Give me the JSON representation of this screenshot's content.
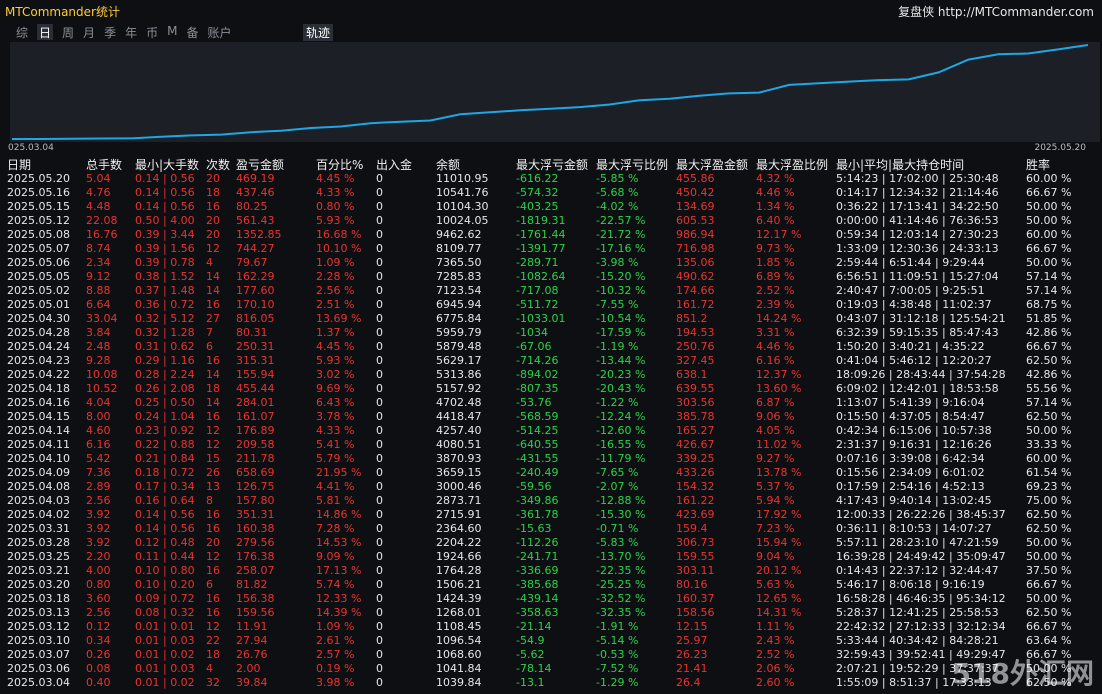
{
  "header": {
    "title": "MTCommander统计",
    "site": "复盘侠 http://MTCommander.com"
  },
  "tabs": [
    "综",
    "日",
    "周",
    "月",
    "季",
    "年",
    "币",
    "M",
    "备",
    "账户"
  ],
  "active_tab": "轨迹",
  "curve": {
    "start_label": "025.03.04",
    "end_label": "2025.05.20"
  },
  "table": {
    "columns": [
      "日期",
      "总手数",
      "最小|大手数",
      "次数",
      "盈亏金额",
      "百分比%",
      "出入金",
      "余额",
      "最大浮亏金额",
      "最大浮亏比例",
      "最大浮盈金额",
      "最大浮盈比例",
      "最小|平均|最大持仓时间",
      "胜率"
    ],
    "rows": [
      [
        "2025.05.20",
        "5.04",
        "0.14 | 0.56",
        "20",
        "469.19",
        "4.45 %",
        "0",
        "11010.95",
        "-616.22",
        "-5.85 %",
        "455.86",
        "4.32 %",
        "5:14:23 | 17:02:00 | 25:30:48",
        "60.00 %"
      ],
      [
        "2025.05.16",
        "4.76",
        "0.14 | 0.56",
        "18",
        "437.46",
        "4.33 %",
        "0",
        "10541.76",
        "-574.32",
        "-5.68 %",
        "450.42",
        "4.46 %",
        "0:14:17 | 12:34:32 | 21:14:46",
        "66.67 %"
      ],
      [
        "2025.05.15",
        "4.48",
        "0.14 | 0.56",
        "16",
        "80.25",
        "0.80 %",
        "0",
        "10104.30",
        "-403.25",
        "-4.02 %",
        "134.69",
        "1.34 %",
        "0:36:22 | 17:13:41 | 34:22:50",
        "50.00 %"
      ],
      [
        "2025.05.12",
        "22.08",
        "0.50 | 4.00",
        "20",
        "561.43",
        "5.93 %",
        "0",
        "10024.05",
        "-1819.31",
        "-22.57 %",
        "605.53",
        "6.40 %",
        "0:00:00 | 41:14:46 | 76:36:53",
        "50.00 %"
      ],
      [
        "2025.05.08",
        "16.76",
        "0.39 | 3.44",
        "20",
        "1352.85",
        "16.68 %",
        "0",
        "9462.62",
        "-1761.44",
        "-21.72 %",
        "986.94",
        "12.17 %",
        "0:59:34 | 12:03:14 | 27:30:23",
        "60.00 %"
      ],
      [
        "2025.05.07",
        "8.74",
        "0.39 | 1.56",
        "12",
        "744.27",
        "10.10 %",
        "0",
        "8109.77",
        "-1391.77",
        "-17.16 %",
        "716.98",
        "9.73 %",
        "1:33:09 | 12:30:36 | 24:33:13",
        "66.67 %"
      ],
      [
        "2025.05.06",
        "2.34",
        "0.39 | 0.78",
        "4",
        "79.67",
        "1.09 %",
        "0",
        "7365.50",
        "-289.71",
        "-3.98 %",
        "135.06",
        "1.85 %",
        "2:59:44 | 6:51:44 | 9:29:44",
        "50.00 %"
      ],
      [
        "2025.05.05",
        "9.12",
        "0.38 | 1.52",
        "14",
        "162.29",
        "2.28 %",
        "0",
        "7285.83",
        "-1082.64",
        "-15.20 %",
        "490.62",
        "6.89 %",
        "6:56:51 | 11:09:51 | 15:27:04",
        "57.14 %"
      ],
      [
        "2025.05.02",
        "8.88",
        "0.37 | 1.48",
        "14",
        "177.60",
        "2.56 %",
        "0",
        "7123.54",
        "-717.08",
        "-10.32 %",
        "174.66",
        "2.52 %",
        "2:40:47 | 7:00:05 | 9:25:51",
        "57.14 %"
      ],
      [
        "2025.05.01",
        "6.64",
        "0.36 | 0.72",
        "16",
        "170.10",
        "2.51 %",
        "0",
        "6945.94",
        "-511.72",
        "-7.55 %",
        "161.72",
        "2.39 %",
        "0:19:03 | 4:38:48 | 11:02:37",
        "68.75 %"
      ],
      [
        "2025.04.30",
        "33.04",
        "0.32 | 5.12",
        "27",
        "816.05",
        "13.69 %",
        "0",
        "6775.84",
        "-1033.01",
        "-10.54 %",
        "851.2",
        "14.24 %",
        "0:43:07 | 31:12:18 | 125:54:21",
        "51.85 %"
      ],
      [
        "2025.04.28",
        "3.84",
        "0.32 | 1.28",
        "7",
        "80.31",
        "1.37 %",
        "0",
        "5959.79",
        "-1034",
        "-17.59 %",
        "194.53",
        "3.31 %",
        "6:32:39 | 59:15:35 | 85:47:43",
        "42.86 %"
      ],
      [
        "2025.04.24",
        "2.48",
        "0.31 | 0.62",
        "6",
        "250.31",
        "4.45 %",
        "0",
        "5879.48",
        "-67.06",
        "-1.19 %",
        "250.76",
        "4.46 %",
        "1:50:20 | 3:40:21 | 4:35:22",
        "66.67 %"
      ],
      [
        "2025.04.23",
        "9.28",
        "0.29 | 1.16",
        "16",
        "315.31",
        "5.93 %",
        "0",
        "5629.17",
        "-714.26",
        "-13.44 %",
        "327.45",
        "6.16 %",
        "0:41:04 | 5:46:12 | 12:20:27",
        "62.50 %"
      ],
      [
        "2025.04.22",
        "10.08",
        "0.28 | 2.24",
        "14",
        "155.94",
        "3.02 %",
        "0",
        "5313.86",
        "-894.02",
        "-20.23 %",
        "638.1",
        "12.37 %",
        "18:09:26 | 28:43:44 | 37:54:28",
        "42.86 %"
      ],
      [
        "2025.04.18",
        "10.52",
        "0.26 | 2.08",
        "18",
        "455.44",
        "9.69 %",
        "0",
        "5157.92",
        "-807.35",
        "-20.43 %",
        "639.55",
        "13.60 %",
        "6:09:02 | 12:42:01 | 18:53:58",
        "55.56 %"
      ],
      [
        "2025.04.16",
        "4.04",
        "0.25 | 0.50",
        "14",
        "284.01",
        "6.43 %",
        "0",
        "4702.48",
        "-53.76",
        "-1.22 %",
        "303.56",
        "6.87 %",
        "1:13:07 | 5:41:39 | 9:16:04",
        "57.14 %"
      ],
      [
        "2025.04.15",
        "8.00",
        "0.24 | 1.04",
        "16",
        "161.07",
        "3.78 %",
        "0",
        "4418.47",
        "-568.59",
        "-12.24 %",
        "385.78",
        "9.06 %",
        "0:15:50 | 4:37:05 | 8:54:47",
        "62.50 %"
      ],
      [
        "2025.04.14",
        "4.60",
        "0.23 | 0.92",
        "12",
        "176.89",
        "4.33 %",
        "0",
        "4257.40",
        "-514.25",
        "-12.60 %",
        "165.27",
        "4.05 %",
        "0:42:34 | 6:15:06 | 10:57:38",
        "50.00 %"
      ],
      [
        "2025.04.11",
        "6.16",
        "0.22 | 0.88",
        "12",
        "209.58",
        "5.41 %",
        "0",
        "4080.51",
        "-640.55",
        "-16.55 %",
        "426.67",
        "11.02 %",
        "2:31:37 | 9:16:31 | 12:16:26",
        "33.33 %"
      ],
      [
        "2025.04.10",
        "5.42",
        "0.21 | 0.84",
        "15",
        "211.78",
        "5.79 %",
        "0",
        "3870.93",
        "-431.55",
        "-11.79 %",
        "339.25",
        "9.27 %",
        "0:07:16 | 3:39:08 | 6:42:34",
        "60.00 %"
      ],
      [
        "2025.04.09",
        "7.36",
        "0.18 | 0.72",
        "26",
        "658.69",
        "21.95 %",
        "0",
        "3659.15",
        "-240.49",
        "-7.65 %",
        "433.26",
        "13.78 %",
        "0:15:56 | 2:34:09 | 6:01:02",
        "61.54 %"
      ],
      [
        "2025.04.08",
        "2.89",
        "0.17 | 0.34",
        "13",
        "126.75",
        "4.41 %",
        "0",
        "3000.46",
        "-59.56",
        "-2.07 %",
        "154.32",
        "5.37 %",
        "0:17:59 | 2:54:16 | 4:52:13",
        "69.23 %"
      ],
      [
        "2025.04.03",
        "2.56",
        "0.16 | 0.64",
        "8",
        "157.80",
        "5.81 %",
        "0",
        "2873.71",
        "-349.86",
        "-12.88 %",
        "161.22",
        "5.94 %",
        "4:17:43 | 9:40:14 | 13:02:45",
        "75.00 %"
      ],
      [
        "2025.04.02",
        "3.92",
        "0.14 | 0.56",
        "16",
        "351.31",
        "14.86 %",
        "0",
        "2715.91",
        "-361.78",
        "-15.30 %",
        "423.69",
        "17.92 %",
        "12:00:33 | 26:22:26 | 38:45:37",
        "62.50 %"
      ],
      [
        "2025.03.31",
        "3.92",
        "0.14 | 0.56",
        "16",
        "160.38",
        "7.28 %",
        "0",
        "2364.60",
        "-15.63",
        "-0.71 %",
        "159.4",
        "7.23 %",
        "0:36:11 | 8:10:53 | 14:07:27",
        "62.50 %"
      ],
      [
        "2025.03.28",
        "3.92",
        "0.12 | 0.48",
        "20",
        "279.56",
        "14.53 %",
        "0",
        "2204.22",
        "-112.26",
        "-5.83 %",
        "306.73",
        "15.94 %",
        "5:57:11 | 28:23:10 | 47:21:59",
        "50.00 %"
      ],
      [
        "2025.03.25",
        "2.20",
        "0.11 | 0.44",
        "12",
        "176.38",
        "9.09 %",
        "0",
        "1924.66",
        "-241.71",
        "-13.70 %",
        "159.55",
        "9.04 %",
        "16:39:28 | 24:49:42 | 35:09:47",
        "50.00 %"
      ],
      [
        "2025.03.21",
        "4.00",
        "0.10 | 0.80",
        "16",
        "258.07",
        "17.13 %",
        "0",
        "1764.28",
        "-336.69",
        "-22.35 %",
        "303.11",
        "20.12 %",
        "0:14:43 | 22:37:12 | 32:44:47",
        "37.50 %"
      ],
      [
        "2025.03.20",
        "0.80",
        "0.10 | 0.20",
        "6",
        "81.82",
        "5.74 %",
        "0",
        "1506.21",
        "-385.68",
        "-25.25 %",
        "80.16",
        "5.63 %",
        "5:46:17 | 8:06:18 | 9:16:19",
        "66.67 %"
      ],
      [
        "2025.03.18",
        "3.60",
        "0.09 | 0.72",
        "16",
        "156.38",
        "12.33 %",
        "0",
        "1424.39",
        "-439.14",
        "-32.52 %",
        "160.37",
        "12.65 %",
        "16:58:28 | 46:46:35 | 95:34:12",
        "50.00 %"
      ],
      [
        "2025.03.13",
        "2.56",
        "0.08 | 0.32",
        "16",
        "159.56",
        "14.39 %",
        "0",
        "1268.01",
        "-358.63",
        "-32.35 %",
        "158.56",
        "14.31 %",
        "5:28:37 | 12:41:25 | 25:58:53",
        "62.50 %"
      ],
      [
        "2025.03.12",
        "0.12",
        "0.01 | 0.01",
        "12",
        "11.91",
        "1.09 %",
        "0",
        "1108.45",
        "-21.14",
        "-1.91 %",
        "12.15",
        "1.11 %",
        "22:42:32 | 27:12:33 | 32:12:34",
        "66.67 %"
      ],
      [
        "2025.03.10",
        "0.34",
        "0.01 | 0.03",
        "22",
        "27.94",
        "2.61 %",
        "0",
        "1096.54",
        "-54.9",
        "-5.14 %",
        "25.97",
        "2.43 %",
        "5:33:44 | 40:34:42 | 84:28:21",
        "63.64 %"
      ],
      [
        "2025.03.07",
        "0.26",
        "0.01 | 0.02",
        "18",
        "26.76",
        "2.57 %",
        "0",
        "1068.60",
        "-5.62",
        "-0.53 %",
        "26.23",
        "2.52 %",
        "32:59:43 | 39:52:41 | 49:29:47",
        "66.67 %"
      ],
      [
        "2025.03.06",
        "0.08",
        "0.01 | 0.03",
        "4",
        "2.00",
        "0.19 %",
        "0",
        "1041.84",
        "-78.14",
        "-7.52 %",
        "21.41",
        "2.06 %",
        "2:07:21 | 19:52:29 | 37:37:37",
        "50.00 %"
      ],
      [
        "2025.03.04",
        "0.40",
        "0.01 | 0.02",
        "32",
        "39.84",
        "3.98 %",
        "0",
        "1039.84",
        "-13.1",
        "-1.29 %",
        "26.4",
        "2.60 %",
        "1:55:09 | 8:51:37 | 17:33:13",
        "62.50 %"
      ]
    ]
  },
  "watermark": "518外汇网"
}
